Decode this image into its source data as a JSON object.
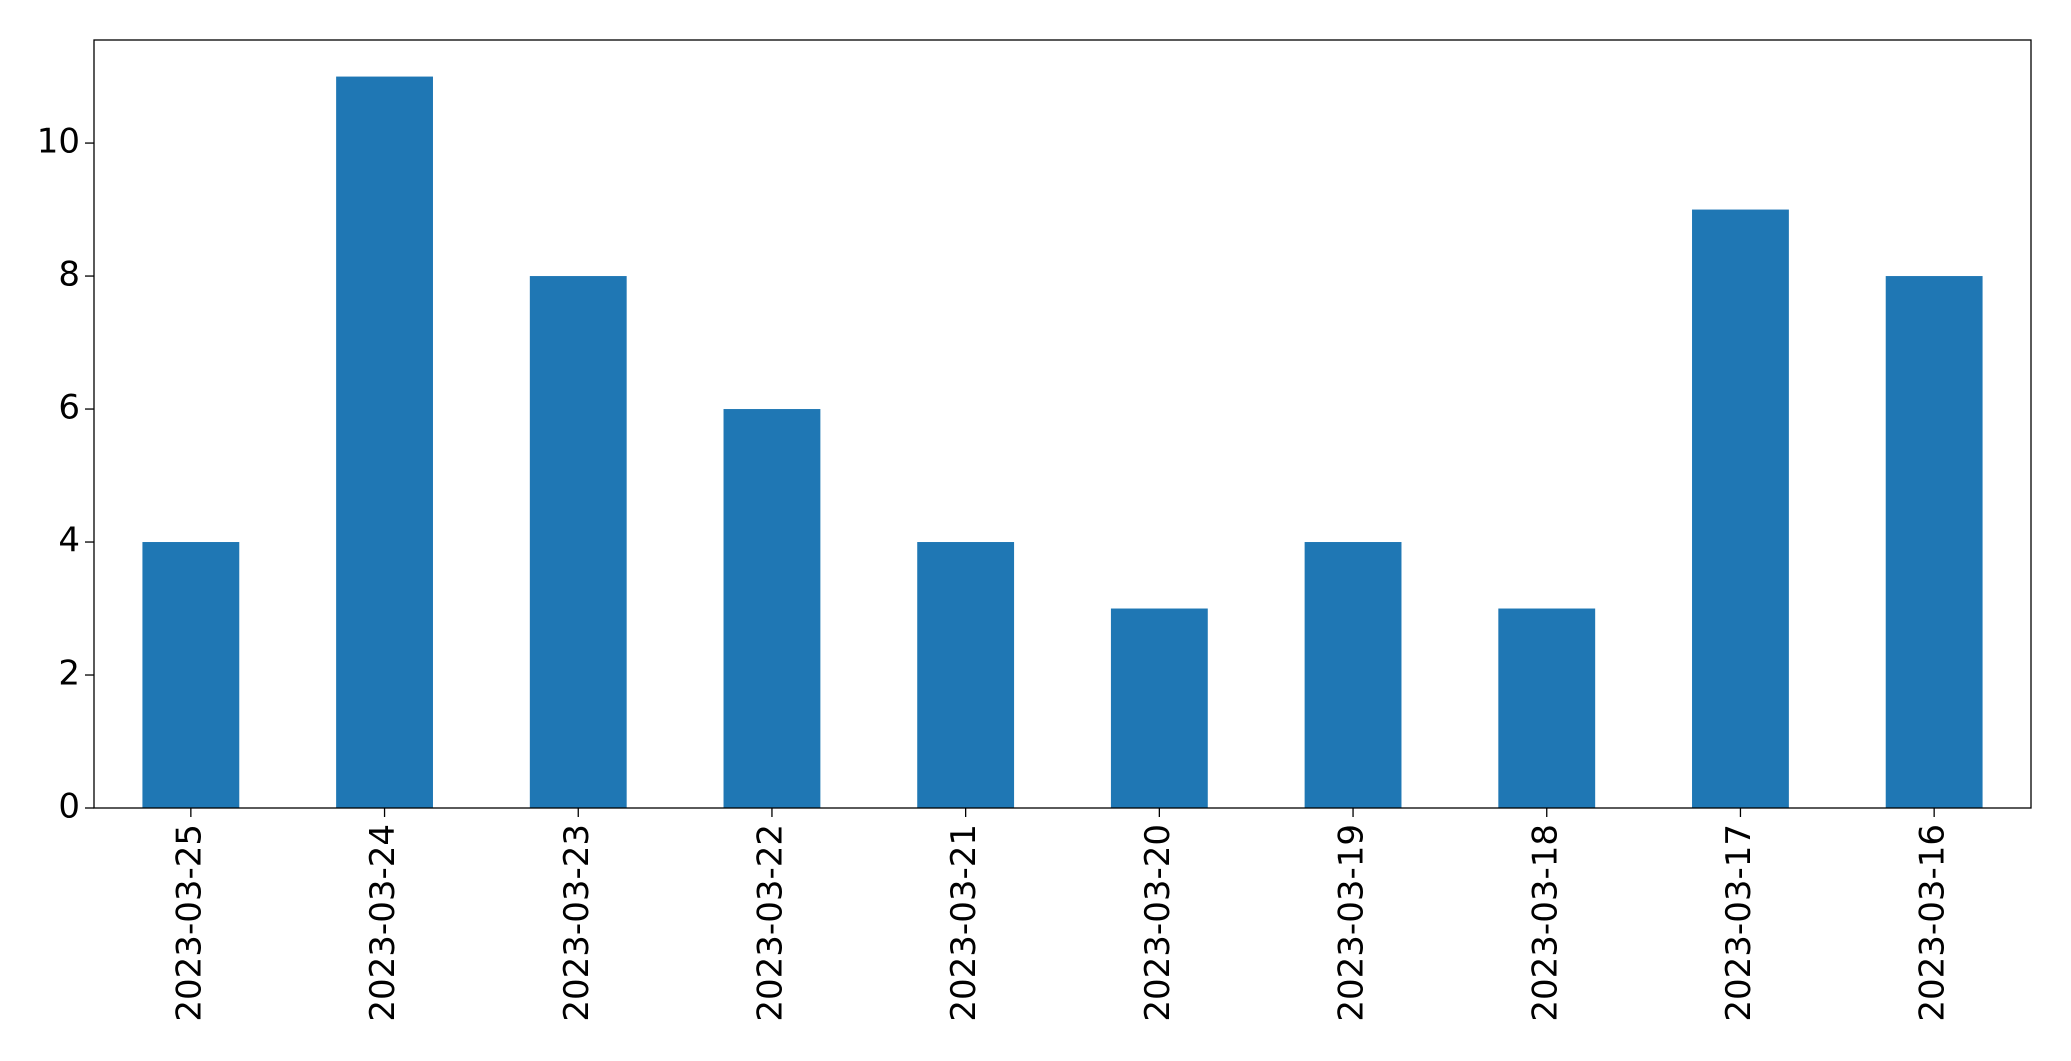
{
  "chart_data": {
    "type": "bar",
    "categories": [
      "2023-03-25",
      "2023-03-24",
      "2023-03-23",
      "2023-03-22",
      "2023-03-21",
      "2023-03-20",
      "2023-03-19",
      "2023-03-18",
      "2023-03-17",
      "2023-03-16"
    ],
    "values": [
      4,
      11,
      8,
      6,
      4,
      3,
      4,
      3,
      9,
      8
    ],
    "color": "#1f77b4",
    "ylim": [
      0,
      11.55
    ],
    "yticks": [
      0,
      2,
      4,
      6,
      8,
      10
    ]
  }
}
